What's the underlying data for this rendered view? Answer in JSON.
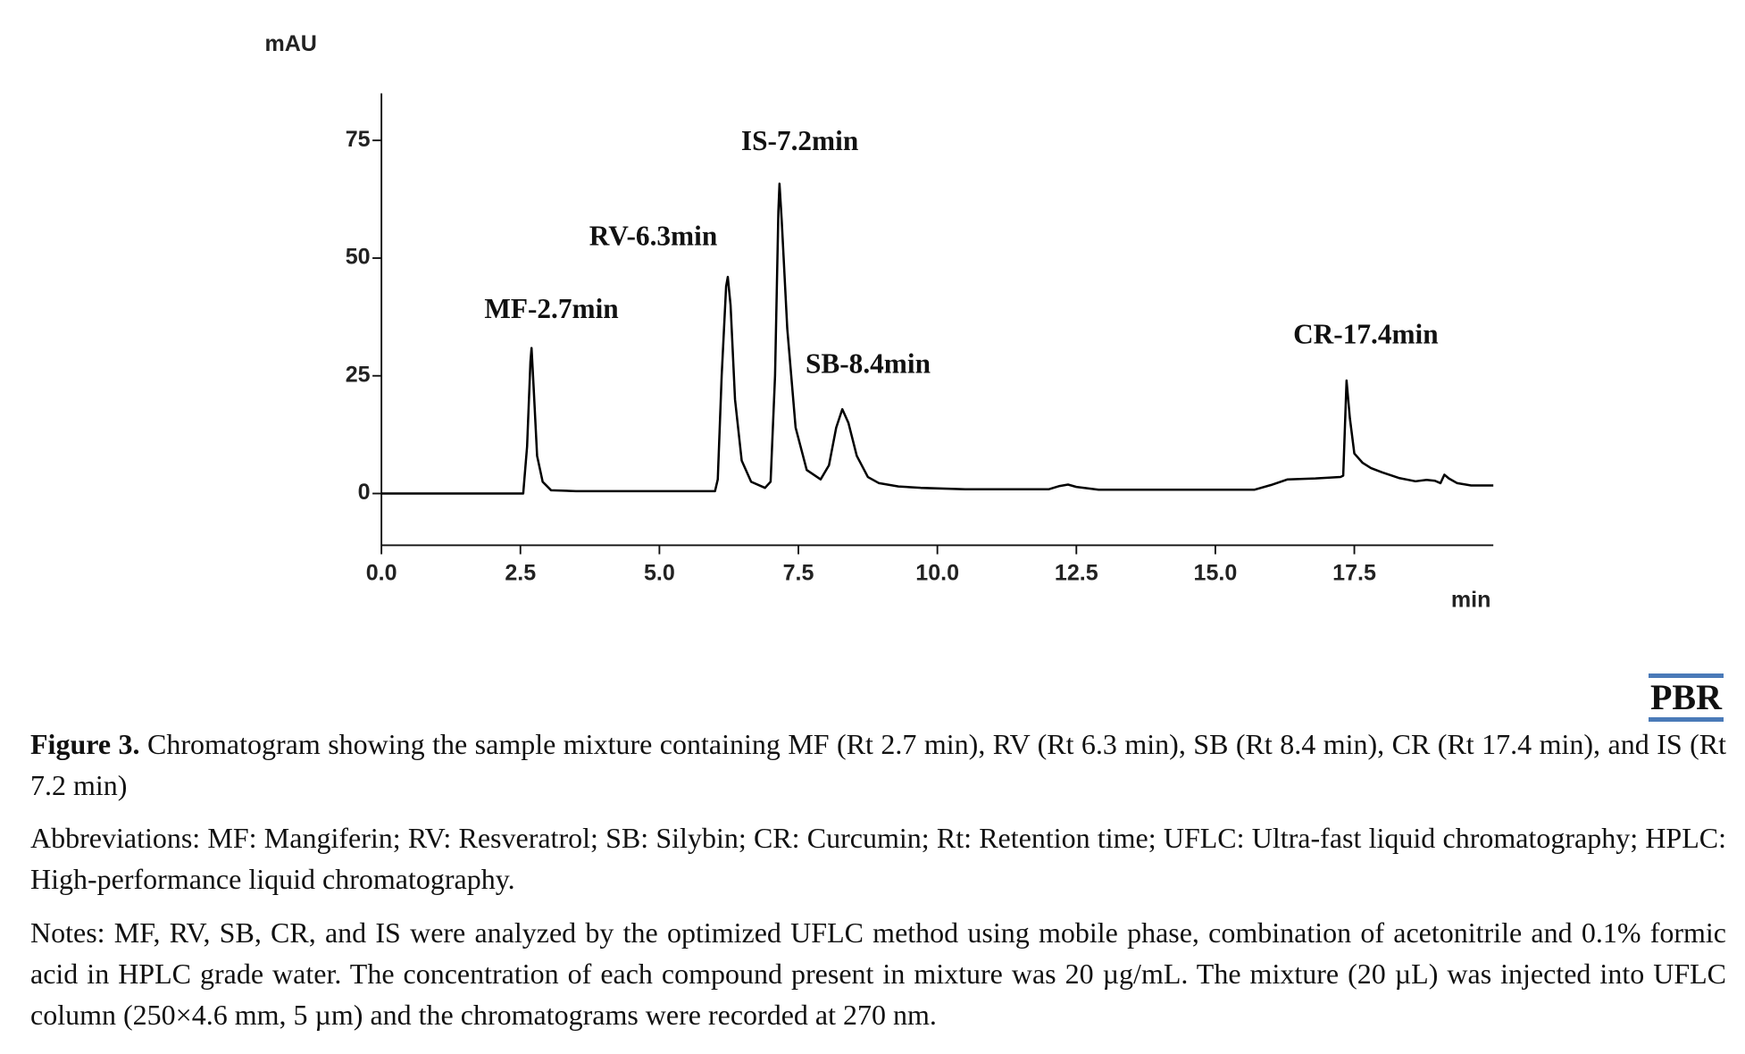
{
  "chart_data": {
    "type": "line",
    "ylabel": "mAU",
    "xlabel": "min",
    "color": "#000000",
    "xlim": [
      0,
      20
    ],
    "ylim": [
      -11,
      85
    ],
    "xticks": [
      {
        "value": 0,
        "label": "0.0"
      },
      2.5,
      {
        "value": 5,
        "label": "5.0"
      },
      7.5,
      {
        "value": 10,
        "label": "10.0"
      },
      12.5,
      {
        "value": 15,
        "label": "15.0"
      },
      17.5
    ],
    "yticks": [
      0,
      25,
      50,
      75
    ],
    "x": [
      0,
      2.55,
      2.62,
      2.68,
      2.7,
      2.74,
      2.8,
      2.9,
      3.05,
      3.5,
      6.0,
      6.05,
      6.12,
      6.2,
      6.23,
      6.28,
      6.36,
      6.48,
      6.65,
      6.9,
      7.0,
      7.08,
      7.14,
      7.16,
      7.2,
      7.3,
      7.45,
      7.65,
      7.9,
      8.05,
      8.18,
      8.29,
      8.4,
      8.55,
      8.75,
      8.95,
      9.3,
      9.7,
      10.5,
      12.0,
      12.2,
      12.35,
      12.5,
      12.9,
      15.7,
      16.0,
      16.3,
      16.8,
      17.25,
      17.3,
      17.36,
      17.42,
      17.5,
      17.65,
      17.8,
      18.0,
      18.3,
      18.6,
      18.8,
      18.95,
      19.05,
      19.12,
      19.2,
      19.35,
      19.6,
      20
    ],
    "values": [
      0,
      0,
      10,
      28,
      30.9,
      22,
      8,
      2.5,
      0.7,
      0.5,
      0.5,
      3,
      25,
      44,
      46,
      40,
      20,
      7,
      2.5,
      1.2,
      2.5,
      25,
      60,
      65.8,
      58,
      35,
      14,
      5,
      3,
      6,
      14,
      17.9,
      15,
      8,
      3.5,
      2.2,
      1.5,
      1.2,
      0.9,
      0.9,
      1.6,
      1.9,
      1.4,
      0.8,
      0.8,
      1.8,
      3,
      3.2,
      3.5,
      3.8,
      24,
      16,
      8.5,
      6.5,
      5.4,
      4.5,
      3.3,
      2.6,
      2.9,
      2.7,
      2.2,
      4,
      3.2,
      2.2,
      1.7,
      1.7
    ],
    "annotations": [
      "MF-2.7min",
      "RV-6.3min",
      "IS-7.2min",
      "SB-8.4min",
      "CR-17.4min"
    ]
  },
  "logo": "PBR",
  "caption": {
    "label": "Figure 3.",
    "text": "Chromatogram showing the sample mixture containing MF (Rt 2.7 min), RV (Rt 6.3 min), SB (Rt 8.4 min), CR (Rt 17.4 min), and IS (Rt 7.2 min)",
    "abbreviations": "Abbreviations: MF: Mangiferin; RV: Resveratrol; SB: Silybin; CR: Curcumin; Rt: Retention time; UFLC: Ultra-fast liquid chromatography; HPLC: High-performance liquid chromatography.",
    "notes": "Notes: MF, RV, SB, CR, and IS were analyzed by the optimized UFLC method using mobile phase, combination of acetonitrile and 0.1% formic acid in HPLC grade water. The concentration of each compound present in mixture was 20 µg/mL. The mixture (20 µL) was injected into UFLC column (250×4.6 mm, 5 µm) and the chromatograms were recorded at 270 nm."
  }
}
